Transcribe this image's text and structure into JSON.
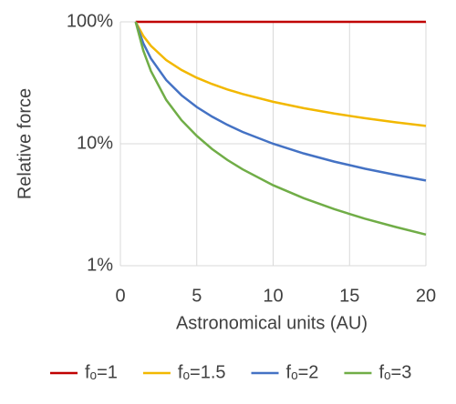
{
  "chart_data": {
    "type": "line",
    "x_label": "Astronomical units (AU)",
    "y_label": "Relative force",
    "x": [
      1,
      1.5,
      2,
      3,
      4,
      5,
      6,
      7,
      8,
      10,
      12,
      14,
      16,
      18,
      20
    ],
    "series": [
      {
        "name": "fₒ=1",
        "color": "#c00000",
        "values": [
          100,
          100,
          100,
          100,
          100,
          100,
          100,
          100,
          100,
          100,
          100,
          100,
          100,
          100,
          100
        ]
      },
      {
        "name": "fₒ=1.5",
        "color": "#f2b800",
        "values": [
          100,
          76.6,
          63.5,
          48.6,
          40.3,
          34.8,
          30.9,
          27.9,
          25.6,
          22.1,
          19.6,
          17.7,
          16.2,
          15.0,
          14.0
        ]
      },
      {
        "name": "fₒ=2",
        "color": "#4472c4",
        "values": [
          100,
          66.7,
          50,
          33.3,
          25,
          20,
          16.7,
          14.3,
          12.5,
          10,
          8.33,
          7.14,
          6.25,
          5.56,
          5
        ]
      },
      {
        "name": "fₒ=3",
        "color": "#70ad47",
        "values": [
          100,
          58.1,
          39.5,
          22.9,
          15.6,
          11.6,
          9.06,
          7.37,
          6.17,
          4.57,
          3.58,
          2.91,
          2.43,
          2.08,
          1.8
        ]
      }
    ],
    "xlim": [
      0,
      20
    ],
    "xticks": [
      0,
      5,
      10,
      15,
      20
    ],
    "ylim": [
      1,
      100
    ],
    "yticks": [
      {
        "value": 1,
        "label": "1%"
      },
      {
        "value": 10,
        "label": "10%"
      },
      {
        "value": 100,
        "label": "100%"
      }
    ],
    "y_scale": "log",
    "grid": true,
    "legend": "bottom"
  }
}
